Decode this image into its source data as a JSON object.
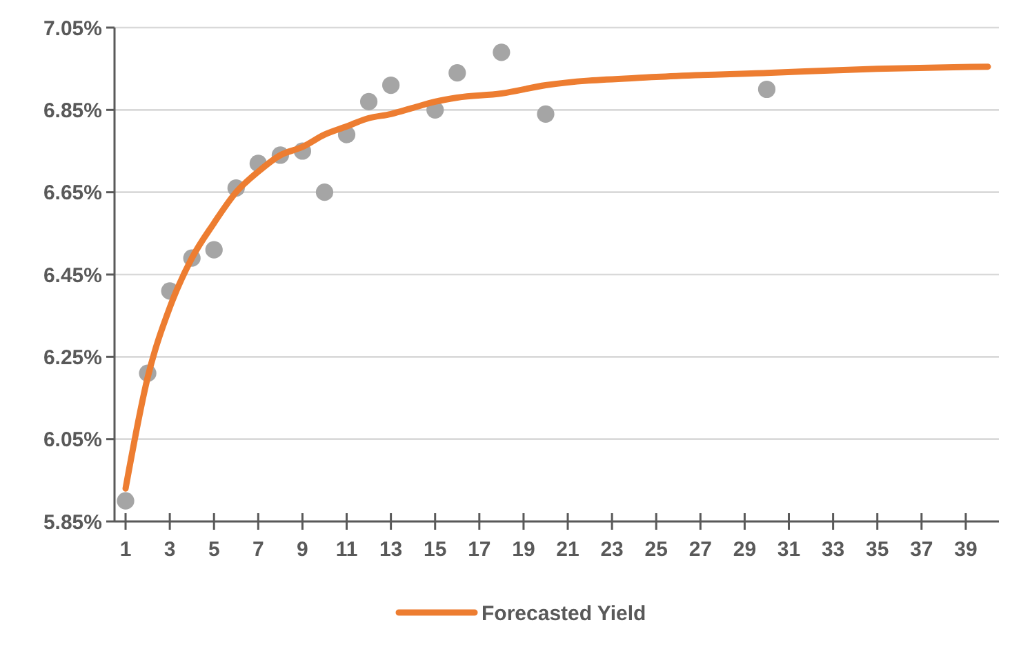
{
  "chart_data": {
    "type": "scatter",
    "series": [
      {
        "type": "scatter",
        "color": "#a5a5a5",
        "marker": "circle",
        "x": [
          1,
          2,
          3,
          4,
          5,
          6,
          7,
          8,
          9,
          10,
          11,
          12,
          13,
          15,
          16,
          18,
          20,
          30
        ],
        "values": [
          5.9,
          6.21,
          6.41,
          6.49,
          6.51,
          6.66,
          6.72,
          6.74,
          6.75,
          6.65,
          6.79,
          6.87,
          6.91,
          6.85,
          6.94,
          6.99,
          6.84,
          6.9
        ]
      },
      {
        "type": "line",
        "name": "Forecasted Yield",
        "color": "#ed7d31",
        "marker": "none",
        "line_style": "solid",
        "x": [
          1,
          2,
          3,
          4,
          5,
          6,
          7,
          8,
          9,
          10,
          11,
          12,
          13,
          14,
          15,
          16,
          18,
          20,
          25,
          30,
          35,
          40
        ],
        "values": [
          5.93,
          6.2,
          6.37,
          6.49,
          6.575,
          6.65,
          6.7,
          6.74,
          6.76,
          6.79,
          6.81,
          6.83,
          6.84,
          6.855,
          6.87,
          6.88,
          6.89,
          6.91,
          6.93,
          6.94,
          6.95,
          6.955
        ]
      }
    ],
    "xlim": [
      0.5,
      40.5
    ],
    "xticks": [
      1,
      3,
      5,
      7,
      9,
      11,
      13,
      15,
      17,
      19,
      21,
      23,
      25,
      27,
      29,
      31,
      33,
      35,
      37,
      39
    ],
    "ylim": [
      5.85,
      7.05
    ],
    "yticks": [
      {
        "value": 5.85,
        "label": "5.85%"
      },
      {
        "value": 6.05,
        "label": "6.05%"
      },
      {
        "value": 6.25,
        "label": "6.25%"
      },
      {
        "value": 6.45,
        "label": "6.45%"
      },
      {
        "value": 6.65,
        "label": "6.65%"
      },
      {
        "value": 6.85,
        "label": "6.85%"
      },
      {
        "value": 7.05,
        "label": "7.05%"
      }
    ],
    "grid": "y",
    "legend": "bottom"
  }
}
